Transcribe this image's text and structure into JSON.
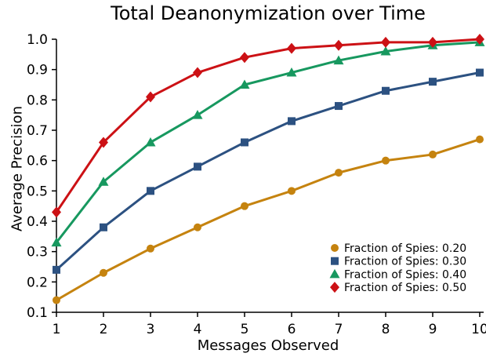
{
  "figure": {
    "background": "#FFFFFF",
    "axis_color": "#000000",
    "text_color": "#000000"
  },
  "chart_data": {
    "type": "line",
    "title": "Total Deanonymization over Time",
    "xlabel": "Messages Observed",
    "ylabel": "Average Precision",
    "xlim": [
      1,
      10
    ],
    "ylim": [
      0.1,
      1.0
    ],
    "xticks": [
      1,
      2,
      3,
      4,
      5,
      6,
      7,
      8,
      9,
      10
    ],
    "yticks": [
      0.1,
      0.2,
      0.3,
      0.4,
      0.5,
      0.6,
      0.7,
      0.8,
      0.9,
      1.0
    ],
    "grid": false,
    "legend_position": "lower-right",
    "x": [
      1,
      2,
      3,
      4,
      5,
      6,
      7,
      8,
      9,
      10
    ],
    "series": [
      {
        "name": "Fraction of Spies: 0.20",
        "color": "#C5830F",
        "marker": "circle",
        "values": [
          0.14,
          0.23,
          0.31,
          0.38,
          0.45,
          0.5,
          0.56,
          0.6,
          0.62,
          0.67
        ]
      },
      {
        "name": "Fraction of Spies: 0.30",
        "color": "#2C5181",
        "marker": "square",
        "values": [
          0.24,
          0.38,
          0.5,
          0.58,
          0.66,
          0.73,
          0.78,
          0.83,
          0.86,
          0.89
        ]
      },
      {
        "name": "Fraction of Spies: 0.40",
        "color": "#17985F",
        "marker": "triangle",
        "values": [
          0.33,
          0.53,
          0.66,
          0.75,
          0.85,
          0.89,
          0.93,
          0.96,
          0.98,
          0.99
        ]
      },
      {
        "name": "Fraction of Spies: 0.50",
        "color": "#CC1115",
        "marker": "diamond",
        "values": [
          0.43,
          0.66,
          0.81,
          0.89,
          0.94,
          0.97,
          0.98,
          0.99,
          0.99,
          1.0
        ]
      }
    ]
  }
}
